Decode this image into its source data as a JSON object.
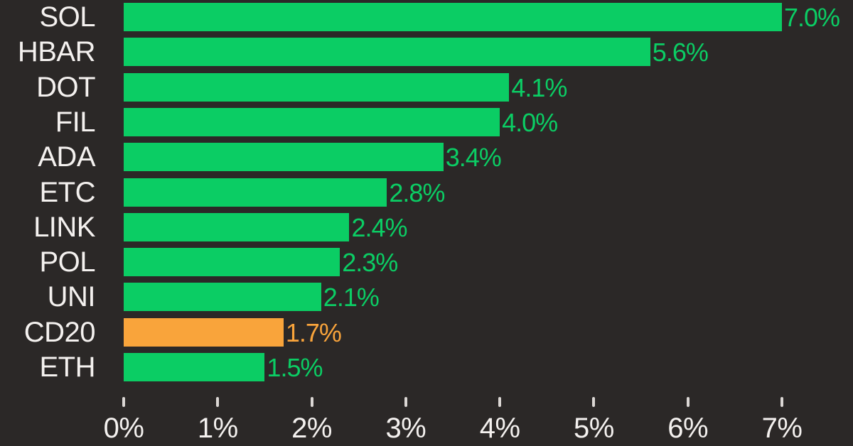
{
  "chart_data": {
    "type": "bar",
    "orientation": "horizontal",
    "title": "",
    "xlabel": "",
    "ylabel": "",
    "categories": [
      "SOL",
      "HBAR",
      "DOT",
      "FIL",
      "ADA",
      "ETC",
      "LINK",
      "POL",
      "UNI",
      "CD20",
      "ETH"
    ],
    "values": [
      7.0,
      5.6,
      4.1,
      4.0,
      3.4,
      2.8,
      2.4,
      2.3,
      2.1,
      1.7,
      1.5
    ],
    "value_labels": [
      "7.0%",
      "5.6%",
      "4.1%",
      "4.0%",
      "3.4%",
      "2.8%",
      "2.4%",
      "2.3%",
      "2.1%",
      "1.7%",
      "1.5%"
    ],
    "bar_colors": [
      "#0bcd64",
      "#0bcd64",
      "#0bcd64",
      "#0bcd64",
      "#0bcd64",
      "#0bcd64",
      "#0bcd64",
      "#0bcd64",
      "#0bcd64",
      "#f9a43b",
      "#0bcd64"
    ],
    "x_ticks": [
      "0%",
      "1%",
      "2%",
      "3%",
      "4%",
      "5%",
      "6%",
      "7%"
    ],
    "xlim": [
      0,
      7
    ],
    "grid": false,
    "legend": "none",
    "colors": {
      "positive_green": "#0bcd64",
      "highlight_orange": "#f9a43b",
      "background": "#2b2827",
      "label_text": "#f4f1ef",
      "tick_mark": "#dbd7d4"
    }
  }
}
